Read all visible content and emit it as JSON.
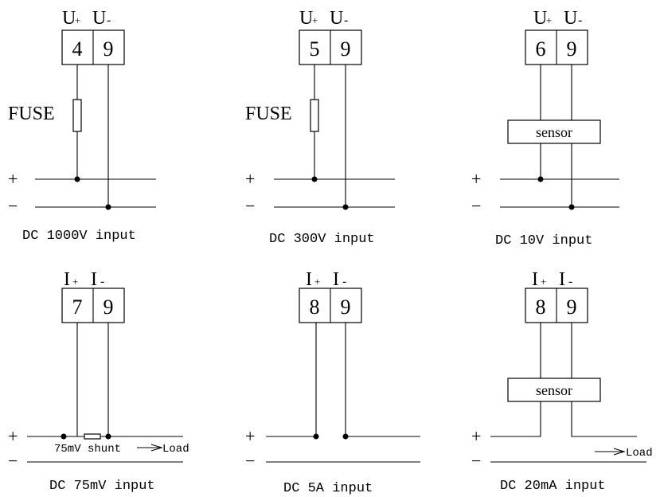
{
  "panels": [
    {
      "pos_label": "U",
      "pos_sign": "+",
      "neg_label": "U",
      "neg_sign": "-",
      "left_terminal": "4",
      "right_terminal": "9",
      "component": "FUSE",
      "caption": "DC 1000V input"
    },
    {
      "pos_label": "U",
      "pos_sign": "+",
      "neg_label": "U",
      "neg_sign": "-",
      "left_terminal": "5",
      "right_terminal": "9",
      "component": "FUSE",
      "caption": "DC 300V input"
    },
    {
      "pos_label": "U",
      "pos_sign": "+",
      "neg_label": "U",
      "neg_sign": "-",
      "left_terminal": "6",
      "right_terminal": "9",
      "component": "sensor",
      "caption": "DC 10V input"
    },
    {
      "pos_label": "I",
      "pos_sign": "+",
      "neg_label": "I",
      "neg_sign": "-",
      "left_terminal": "7",
      "right_terminal": "9",
      "shunt_label": "75mV shunt",
      "load_label": "Load",
      "caption": "DC 75mV input"
    },
    {
      "pos_label": "I",
      "pos_sign": "+",
      "neg_label": "I",
      "neg_sign": "-",
      "left_terminal": "8",
      "right_terminal": "9",
      "caption": "DC 5A input"
    },
    {
      "pos_label": "I",
      "pos_sign": "+",
      "neg_label": "I",
      "neg_sign": "-",
      "left_terminal": "8",
      "right_terminal": "9",
      "component": "sensor",
      "load_label": "Load",
      "caption": "DC 20mA input"
    }
  ],
  "rails": {
    "plus": "+",
    "minus": "−"
  }
}
